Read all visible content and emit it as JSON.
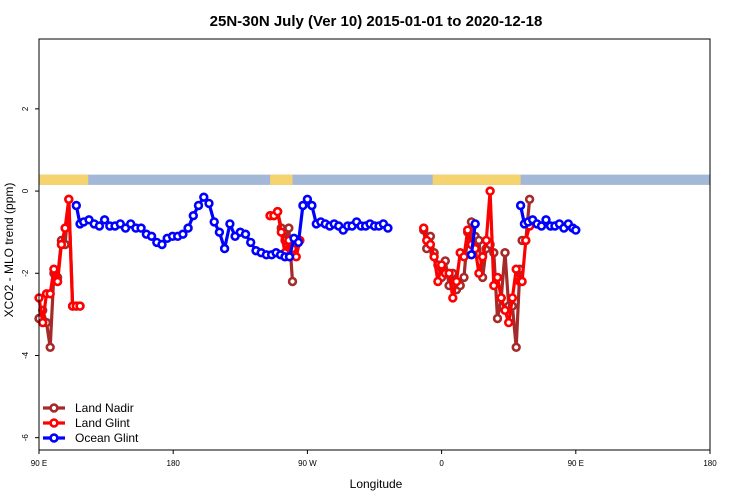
{
  "chart_data": {
    "type": "line",
    "title": "25N-30N July (Ver 10)   2015-01-01 to 2020-12-18",
    "xlabel": "Longitude",
    "ylabel": "XCO2 - MLO trend (ppm)",
    "xlim": [
      90,
      450
    ],
    "ylim": [
      -6.3,
      3.7
    ],
    "x_ticks": [
      {
        "value": 90,
        "label": "90 E"
      },
      {
        "value": 180,
        "label": "180"
      },
      {
        "value": 270,
        "label": "90 W"
      },
      {
        "value": 360,
        "label": "0"
      },
      {
        "value": 450,
        "label": "90 E"
      },
      {
        "value": 540,
        "label": "180"
      }
    ],
    "y_ticks": [
      {
        "value": 2,
        "label": "2"
      },
      {
        "value": 0,
        "label": "0"
      },
      {
        "value": -2,
        "label": "-2"
      },
      {
        "value": -4,
        "label": "-4"
      },
      {
        "value": -6,
        "label": "-6"
      }
    ],
    "x_domain": [
      90,
      540
    ],
    "land_mask": {
      "ocean_color": "#a3b8d6",
      "land_color": "#f5d36e",
      "y_top": 0.4,
      "y_bottom": 0.15,
      "land_segments": [
        [
          90,
          123
        ],
        [
          245,
          260
        ],
        [
          354,
          413
        ],
        [
          456,
          489
        ]
      ]
    },
    "legend": {
      "position": "bottom-left",
      "entries": [
        {
          "label": "Land Nadir",
          "color": "#a52a2a"
        },
        {
          "label": "Land Glint",
          "color": "#ff0000"
        },
        {
          "label": "Ocean Glint",
          "color": "#0000ff"
        }
      ]
    },
    "series": [
      {
        "name": "Land Nadir",
        "color": "#a52a2a",
        "segments": [
          {
            "x": [
              90,
              92.5,
              95,
              97.5,
              100,
              102.5,
              105,
              107.5,
              110,
              112.5,
              115,
              117.5
            ],
            "y": [
              -3.1,
              -2.9,
              -3.2,
              -3.8,
              -2.0,
              -2.1,
              -1.2,
              -1.3,
              -0.2,
              -2.8,
              -2.8,
              -2.8
            ]
          },
          {
            "x": [
              245,
              247.5,
              250,
              252.5,
              255,
              257.5,
              260
            ],
            "y": [
              -0.6,
              -0.6,
              -0.5,
              -0.9,
              -1.2,
              -0.9,
              -2.2
            ]
          },
          {
            "x": [
              348,
              350,
              352.5,
              355,
              357.5,
              360,
              362.5,
              365,
              367.5,
              370,
              372.5,
              375,
              377.5,
              380,
              382.5,
              385,
              387.5,
              390,
              392.5,
              395,
              397.5,
              400,
              402.5,
              405,
              407.5,
              410,
              412.5
            ],
            "y": [
              -0.95,
              -1.4,
              -1.1,
              -1.5,
              -1.8,
              -2.1,
              -1.7,
              -2.3,
              -2.0,
              -2.4,
              -2.3,
              -2.1,
              -1.0,
              -0.75,
              -1.1,
              -1.2,
              -2.1,
              -1.4,
              -1.3,
              -1.5,
              -3.1,
              -2.6,
              -1.5,
              -2.8,
              -2.8,
              -3.8,
              -1.9
            ]
          },
          {
            "x": [
              414,
              416.5,
              419
            ],
            "y": [
              -1.2,
              -1.2,
              -0.2
            ]
          }
        ]
      },
      {
        "name": "Land Glint",
        "color": "#ff0000",
        "segments": [
          {
            "x": [
              90,
              92.5,
              95,
              97.5,
              100,
              102.5,
              105,
              107.5,
              110,
              112.5,
              115,
              117.5
            ],
            "y": [
              -2.6,
              -3.2,
              -2.5,
              -2.5,
              -1.9,
              -2.2,
              -1.3,
              -0.9,
              -0.2,
              -2.8,
              -2.8,
              -2.8
            ]
          },
          {
            "x": [
              245,
              247.5,
              250,
              252.5,
              255,
              257.5,
              260,
              262.5,
              265
            ],
            "y": [
              -0.6,
              -0.6,
              -0.5,
              -1.0,
              -1.5,
              -1.2,
              -1.4,
              -1.6,
              -1.2
            ]
          },
          {
            "x": [
              348,
              350,
              352.5,
              355,
              357.5,
              360,
              362.5,
              365,
              367.5,
              370,
              372.5,
              375,
              377.5,
              380,
              382.5,
              385,
              387.5,
              390,
              392.5,
              395,
              397.5,
              400,
              402.5,
              405,
              407.5,
              410,
              412.5
            ],
            "y": [
              -0.9,
              -1.2,
              -1.3,
              -1.6,
              -2.2,
              -1.8,
              -2.0,
              -2.0,
              -2.6,
              -2.2,
              -1.5,
              -1.6,
              -0.95,
              -1.3,
              -1.4,
              -2.0,
              -1.6,
              -1.2,
              0.0,
              -2.3,
              -2.1,
              -2.6,
              -2.9,
              -3.2,
              -2.6,
              -1.9,
              -2.2
            ]
          },
          {
            "x": [
              414,
              416.5,
              419
            ],
            "y": [
              -2.2,
              -1.2,
              -0.85
            ]
          }
        ]
      },
      {
        "name": "Ocean Glint",
        "color": "#0000ff",
        "segments": [
          {
            "x": [
              115,
              117.5,
              120,
              123.5,
              127,
              130.5,
              134,
              137.5,
              141,
              144.5,
              148,
              151.5,
              155,
              158.5,
              162,
              165.5,
              169,
              172.5,
              176,
              179.5,
              183,
              186.5,
              190,
              193.5,
              197,
              200.5,
              204,
              207.5,
              211,
              214.5,
              218,
              221.5,
              225,
              228.5,
              232,
              235.5,
              239,
              242.5,
              246
            ],
            "y": [
              -0.35,
              -0.8,
              -0.75,
              -0.7,
              -0.8,
              -0.85,
              -0.7,
              -0.85,
              -0.85,
              -0.8,
              -0.9,
              -0.8,
              -0.9,
              -0.9,
              -1.05,
              -1.1,
              -1.25,
              -1.3,
              -1.15,
              -1.1,
              -1.1,
              -1.05,
              -0.9,
              -0.6,
              -0.35,
              -0.15,
              -0.3,
              -0.75,
              -1.0,
              -1.4,
              -0.8,
              -1.1,
              -1.0,
              -1.05,
              -1.25,
              -1.45,
              -1.5,
              -1.55,
              -1.55
            ]
          },
          {
            "x": [
              249,
              252,
              255,
              258,
              261,
              264,
              267,
              270,
              273,
              276,
              279,
              282,
              285,
              288,
              291,
              294,
              297,
              300,
              303,
              306,
              309,
              312,
              315,
              318,
              321,
              324
            ],
            "y": [
              -1.5,
              -1.55,
              -1.6,
              -1.6,
              -1.15,
              -1.25,
              -0.35,
              -0.2,
              -0.35,
              -0.8,
              -0.75,
              -0.8,
              -0.85,
              -0.8,
              -0.85,
              -0.95,
              -0.85,
              -0.85,
              -0.75,
              -0.85,
              -0.85,
              -0.8,
              -0.85,
              -0.85,
              -0.8,
              -0.9
            ]
          },
          {
            "x": [
              380,
              382.5
            ],
            "y": [
              -1.55,
              -0.8
            ]
          },
          {
            "x": [
              413,
              415.5,
              418,
              421,
              424,
              427,
              430,
              433,
              436,
              439,
              442,
              445,
              448,
              450
            ],
            "y": [
              -0.35,
              -0.8,
              -0.75,
              -0.7,
              -0.8,
              -0.85,
              -0.7,
              -0.85,
              -0.85,
              -0.8,
              -0.9,
              -0.8,
              -0.9,
              -0.95
            ]
          }
        ]
      }
    ]
  }
}
